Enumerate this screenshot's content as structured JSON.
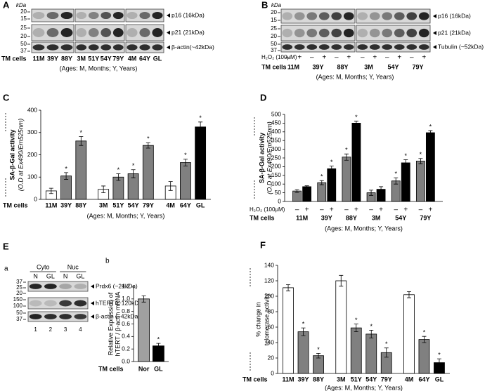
{
  "panel_A": {
    "label": "A",
    "kda": "kDa",
    "markers": [
      20,
      15,
      25,
      20,
      50,
      37
    ],
    "bands": [
      "p16 (16kDa)",
      "p21 (21kDa)",
      "β-actin(~42kDa)"
    ],
    "row_label": "TM cells",
    "lanes": [
      "11M",
      "39Y",
      "88Y",
      "3M",
      "51Y",
      "54Y",
      "79Y",
      "4M",
      "64Y",
      "GL"
    ],
    "note": "(Ages: M, Months; Y, Years)"
  },
  "panel_B": {
    "label": "B",
    "kda": "kDa",
    "markers": [
      20,
      15,
      25,
      20,
      50,
      37
    ],
    "bands": [
      "p16 (16kDa)",
      "p21 (21kDa)",
      "Tubulin (~52kDa)"
    ],
    "treatment_label": "H₂O₂ (100μM)",
    "treatment": [
      "–",
      "+"
    ],
    "row_label": "TM cells",
    "groups": [
      "11M",
      "39Y",
      "88Y",
      "3M",
      "54Y",
      "79Y"
    ],
    "note": "(Ages: M, Months; Y, Years)"
  },
  "panel_E": {
    "label": "E",
    "blot": {
      "label": "a",
      "fractions": [
        "Cyto",
        "Nuc"
      ],
      "lanes": [
        "N",
        "GL",
        "N",
        "GL"
      ],
      "lane_numbers": [
        1,
        2,
        3,
        4
      ],
      "markers": [
        37,
        25,
        20,
        150,
        100,
        50,
        37
      ],
      "bands": [
        "Prdx6 (~24kDa)",
        "hTERT (~120kDa)",
        "β-actin (~42kDa)"
      ]
    }
  },
  "chart_data": [
    {
      "type": "bar",
      "label": "C",
      "y_label": [
        "SA-β-Gal activity",
        "(O.D at Ex490/Em525nm)"
      ],
      "categories": [
        "11M",
        "39Y",
        "88Y",
        "3M",
        "51Y",
        "54Y",
        "79Y",
        "4M",
        "64Y",
        "GL"
      ],
      "values": [
        38,
        105,
        262,
        45,
        100,
        115,
        242,
        60,
        165,
        325
      ],
      "errors": [
        12,
        15,
        20,
        15,
        15,
        18,
        12,
        20,
        15,
        22
      ],
      "colors": [
        "#ffffff",
        "#808080",
        "#808080",
        "#ffffff",
        "#808080",
        "#808080",
        "#808080",
        "#ffffff",
        "#808080",
        "#000000"
      ],
      "significance": [
        null,
        "*",
        "*",
        null,
        "*",
        "*",
        "*",
        null,
        "*",
        "*"
      ],
      "ylim": [
        0,
        400
      ],
      "yticks": [
        0,
        100,
        200,
        300,
        400
      ],
      "row_label": "TM cells",
      "note": "(Ages: M, Months; Y, Years)"
    },
    {
      "type": "bar",
      "label": "D",
      "y_label": [
        "SA-β-Gal activity",
        "(O.D at Ex490/Em525nm)"
      ],
      "treatment_label": "H₂O₂ (100μM)",
      "categories": [
        "11M",
        "39Y",
        "88Y",
        "3M",
        "54Y",
        "79Y"
      ],
      "series": [
        {
          "name": "–",
          "color": "#808080",
          "values": [
            60,
            108,
            255,
            50,
            118,
            232
          ],
          "errors": [
            8,
            12,
            18,
            15,
            18,
            15
          ],
          "significance": [
            null,
            "*",
            "*",
            null,
            "*",
            "*"
          ]
        },
        {
          "name": "+",
          "color": "#000000",
          "values": [
            85,
            188,
            450,
            70,
            222,
            395
          ],
          "errors": [
            5,
            15,
            12,
            15,
            18,
            12
          ],
          "significance": [
            null,
            "*",
            "*",
            null,
            "*",
            "*"
          ]
        }
      ],
      "ylim": [
        0,
        500
      ],
      "yticks": [
        0,
        50,
        100,
        150,
        200,
        250,
        300,
        350,
        400,
        450,
        500
      ],
      "row_label": "TM cells",
      "note": "(Ages: M, Months; Y, Years)"
    },
    {
      "type": "bar",
      "label": "b",
      "y_label": [
        "Relative Expression of",
        "hTERT / β-actin mRNA"
      ],
      "categories": [
        "Nor",
        "GL"
      ],
      "values": [
        1.0,
        0.25
      ],
      "errors": [
        0.05,
        0.04
      ],
      "colors": [
        "#a0a0a0",
        "#000000"
      ],
      "significance": [
        null,
        "*"
      ],
      "ylim": [
        0,
        1.2
      ],
      "yticks": [
        {
          "value": 0,
          "label": "0.0"
        },
        0.2,
        0.4,
        0.6,
        0.8,
        {
          "value": 1,
          "label": "1.0"
        },
        1.2
      ],
      "row_label": "TM cells"
    },
    {
      "type": "bar",
      "label": "F",
      "y_label": [
        "% change in",
        "telomerase activity"
      ],
      "categories": [
        "11M",
        "39Y",
        "88Y",
        "3M",
        "51Y",
        "54Y",
        "79Y",
        "4M",
        "64Y",
        "GL"
      ],
      "values": [
        111,
        54,
        23,
        120,
        59,
        51,
        27,
        102,
        44,
        14
      ],
      "errors": [
        4,
        5,
        3,
        7,
        5,
        5,
        6,
        4,
        4,
        5
      ],
      "colors": [
        "#ffffff",
        "#808080",
        "#808080",
        "#ffffff",
        "#808080",
        "#808080",
        "#808080",
        "#ffffff",
        "#808080",
        "#000000"
      ],
      "significance": [
        null,
        "*",
        "*",
        null,
        "*",
        "*",
        "*",
        null,
        "*",
        "*"
      ],
      "ylim": [
        0,
        140
      ],
      "yticks": [
        0,
        20,
        40,
        60,
        80,
        100,
        120,
        140
      ],
      "row_label": "TM cells",
      "note": "(Ages: M, Months; Y, Years)"
    }
  ]
}
